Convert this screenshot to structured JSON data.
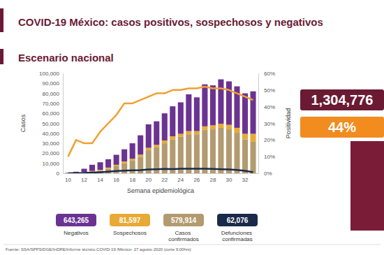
{
  "chart_data": {
    "type": "bar",
    "title": "COVID-19 México: casos positivos, sospechosos y negativos",
    "subtitle": "Escenario nacional",
    "x_label": "Semana epidemiológica",
    "y_label": "Casos",
    "y2_label": "Positividad",
    "source": "Fuente: SSA/SPPS/DGE/InDRE/Informe técnico.COVID-19 /México- 27 agosto 2020 (corte 9:00hrs)",
    "stacked": true,
    "grid": false,
    "legend": "bottom",
    "categories": [
      "10",
      null,
      "12",
      null,
      "14",
      null,
      "16",
      null,
      "18",
      null,
      "20",
      null,
      "22",
      null,
      "24",
      null,
      "26",
      null,
      "28",
      null,
      "30",
      null,
      "32",
      null
    ],
    "ylim": [
      0,
      100000
    ],
    "yticks": [
      0,
      {
        "value": 10000,
        "label": "10,000"
      },
      {
        "value": 20000,
        "label": "20,000"
      },
      {
        "value": 30000,
        "label": "30,000"
      },
      {
        "value": 40000,
        "label": "40,000"
      },
      {
        "value": 50000,
        "label": "50,000"
      },
      {
        "value": 60000,
        "label": "60,000"
      },
      {
        "value": 70000,
        "label": "70,000"
      },
      {
        "value": 80000,
        "label": "80,000"
      },
      {
        "value": 90000,
        "label": "90,000"
      },
      {
        "value": 100000,
        "label": "100,000"
      }
    ],
    "y2lim": [
      0,
      60
    ],
    "y2ticks": [
      {
        "value": 0,
        "label": "0%"
      },
      {
        "value": 10,
        "label": "10%"
      },
      {
        "value": 20,
        "label": "20%"
      },
      {
        "value": 30,
        "label": "30%"
      },
      {
        "value": 40,
        "label": "40%"
      },
      {
        "value": 50,
        "label": "50%"
      },
      {
        "value": 60,
        "label": "60%"
      }
    ],
    "series": [
      {
        "name": "Negativos",
        "type": "bar",
        "color": "#6b3391",
        "total": "643,265",
        "values": [
          400,
          1150,
          3400,
          6200,
          7500,
          8300,
          10000,
          12200,
          15500,
          19300,
          23500,
          23500,
          27200,
          30000,
          31500,
          36800,
          33800,
          42000,
          40000,
          44500,
          43500,
          41500,
          40500,
          42500
        ]
      },
      {
        "name": "Sospechosos",
        "type": "bar",
        "color": "#e8aa35",
        "total": "81,597",
        "values": [
          50,
          150,
          400,
          800,
          1000,
          1200,
          1500,
          1800,
          2000,
          2200,
          2500,
          2500,
          2800,
          3000,
          3000,
          3200,
          3200,
          3500,
          4000,
          4000,
          4500,
          5000,
          5500,
          8000
        ]
      },
      {
        "name": "Casos confirmados",
        "type": "bar",
        "color": "#b39b70",
        "total": "579,914",
        "values": [
          50,
          200,
          700,
          1500,
          2500,
          4500,
          7000,
          10000,
          12500,
          16500,
          23000,
          26000,
          30000,
          34000,
          36500,
          39000,
          39000,
          43500,
          44000,
          45500,
          44000,
          40500,
          34000,
          31500
        ]
      },
      {
        "name": "Defunciones confirmadas",
        "type": "line",
        "color": "#1b2a4a",
        "total": "62,076",
        "values": [
          20,
          100,
          300,
          700,
          1100,
          1600,
          2200,
          2600,
          3000,
          3200,
          3800,
          4100,
          4300,
          4200,
          4500,
          4600,
          4500,
          4500,
          4300,
          4100,
          3800,
          3300,
          2500,
          1000
        ]
      },
      {
        "type": "line",
        "axis": "y2",
        "color": "#f0a030",
        "values": [
          10,
          20,
          18,
          18,
          25,
          30,
          35,
          42,
          42,
          44,
          46,
          48,
          48,
          50,
          50,
          51,
          51,
          52,
          51,
          51,
          50,
          48,
          46,
          44
        ]
      }
    ],
    "highlights": [
      {
        "text": "1,304,776",
        "color": "#6b1a34"
      },
      {
        "text": "44%",
        "color": "#f28c1f"
      }
    ]
  }
}
